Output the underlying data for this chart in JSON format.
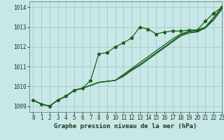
{
  "title": "Graphe pression niveau de la mer (hPa)",
  "bg_color": "#c8e8e8",
  "grid_color": "#a8c8c8",
  "line_color": "#1a5e1a",
  "xlim": [
    -0.5,
    23
  ],
  "ylim": [
    1008.7,
    1014.3
  ],
  "yticks": [
    1009,
    1010,
    1011,
    1012,
    1013,
    1014
  ],
  "xticks": [
    0,
    1,
    2,
    3,
    4,
    5,
    6,
    7,
    8,
    9,
    10,
    11,
    12,
    13,
    14,
    15,
    16,
    17,
    18,
    19,
    20,
    21,
    22,
    23
  ],
  "series_main": [
    1009.3,
    1009.1,
    1009.0,
    1009.3,
    1009.5,
    1009.8,
    1009.9,
    1010.3,
    1011.65,
    1011.7,
    1012.0,
    1012.2,
    1012.45,
    1013.0,
    1012.9,
    1012.65,
    1012.75,
    1012.8,
    1012.8,
    1012.85,
    1012.85,
    1013.3,
    1013.7,
    1014.0
  ],
  "series_lines": [
    [
      1009.3,
      1009.1,
      1009.0,
      1009.3,
      1009.5,
      1009.8,
      1009.9,
      1010.05,
      1010.2,
      1010.25,
      1010.3,
      1010.6,
      1010.9,
      1011.2,
      1011.5,
      1011.8,
      1012.1,
      1012.4,
      1012.65,
      1012.8,
      1012.85,
      1013.0,
      1013.5,
      1014.0
    ],
    [
      1009.3,
      1009.1,
      1009.0,
      1009.3,
      1009.5,
      1009.8,
      1009.9,
      1010.05,
      1010.2,
      1010.25,
      1010.3,
      1010.55,
      1010.85,
      1011.1,
      1011.4,
      1011.7,
      1012.0,
      1012.3,
      1012.6,
      1012.75,
      1012.8,
      1013.0,
      1013.4,
      1013.95
    ],
    [
      1009.3,
      1009.1,
      1009.0,
      1009.3,
      1009.5,
      1009.8,
      1009.9,
      1010.05,
      1010.2,
      1010.25,
      1010.3,
      1010.5,
      1010.8,
      1011.05,
      1011.35,
      1011.65,
      1011.95,
      1012.25,
      1012.55,
      1012.7,
      1012.75,
      1012.95,
      1013.35,
      1013.9
    ]
  ],
  "marker": "*",
  "marker_size": 3.5,
  "line_width": 0.9,
  "tick_fontsize": 5.5,
  "title_fontsize": 6.5
}
